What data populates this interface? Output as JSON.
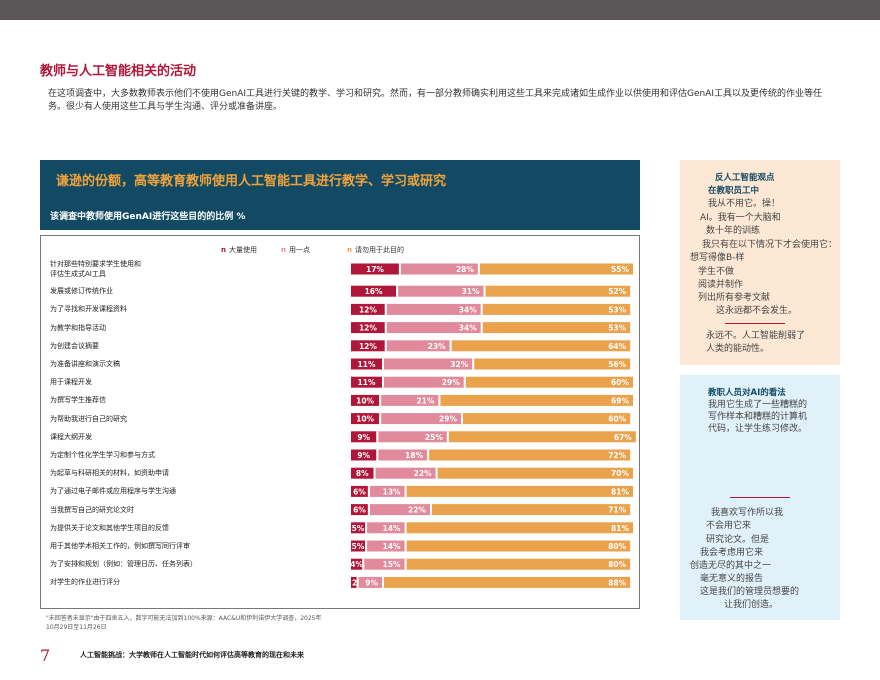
{
  "heading": "教师与人工智能相关的活动",
  "intro": "在这项调查中，大多数教师表示他们不使用GenAI工具进行关键的教学、学习和研究。然而，有一部分教师确实利用这些工具来完成诸如生成作业以供使用和评估GenAI工具以及更传统的作业等任务。很少有人使用这些工具与学生沟通、评分或准备讲座。",
  "banner": {
    "title": "谦逊的份额，高等教育教师使用人工智能工具进行教学、学习或研究",
    "subtitle": "该调查中教师使用GenAI进行这些目的的比例 %"
  },
  "colors": {
    "heavy": "#b0163a",
    "little": "#e08a9b",
    "never": "#eba24c",
    "accent": "#b0163a",
    "banner": "#134a63"
  },
  "chart_data": {
    "type": "bar",
    "stacked": true,
    "orientation": "horizontal",
    "legend_position": "top",
    "series_names": [
      "大量使用",
      "用一点",
      "请勿用于此目的"
    ],
    "categories": [
      "针对那些特别要求学生使用和\n评估生成式AI工具",
      "发展或修订传统作业",
      "为了寻找和开发课程资料",
      "为教学和指导活动",
      "为创建会议摘要",
      "为准备讲座和演示文稿",
      "用于课程开发",
      "为撰写学生推荐信",
      "为帮助我进行自己的研究",
      "课程大纲开发",
      "为定制个性化学生学习和参与方式",
      "为起草与科研相关的材料，如资助申请",
      "为了通过电子邮件或应用程序与学生沟通",
      "当我撰写自己的研究论文时",
      "为提供关于论文和其他学生项目的反馈",
      "用于其他学术相关工作的，例如撰写同行评审",
      "为了安排和规划（例如：管理日历、任务列表）",
      "对学生的作业进行评分"
    ],
    "heavy": [
      17,
      16,
      12,
      12,
      12,
      11,
      11,
      10,
      10,
      9,
      9,
      8,
      6,
      6,
      5,
      5,
      4,
      2
    ],
    "little": [
      28,
      31,
      34,
      34,
      23,
      32,
      29,
      21,
      29,
      25,
      18,
      22,
      13,
      22,
      14,
      14,
      15,
      9
    ],
    "never": [
      55,
      52,
      53,
      53,
      64,
      56,
      60,
      69,
      60,
      67,
      72,
      70,
      81,
      71,
      81,
      80,
      80,
      88
    ],
    "value_suffix": "%"
  },
  "footnote": "\"未回答者未显示\"由于四舍五入，数字可能无法加到100%来源：AAC&U和伊利诺伊大学调查，2025年10月29日至11月26日",
  "page_number": "7",
  "footer": "人工智能挑战：大学教师在人工智能时代如何评估高等教育的现在和未来",
  "sidebar1": {
    "heading1": "反人工智能观点",
    "heading2": "在教职员工中",
    "lines": [
      "我从不用它。操！",
      "AI。我有一个大脑和",
      "数十年的训练",
      "我只有在以下情况下才会使用它：",
      "想写得像B-样",
      "学生不做",
      "阅读并制作",
      "列出所有参考文献",
      "这永远都不会发生。",
      "永远不。人工智能削弱了",
      "人类的能动性。"
    ]
  },
  "sidebar2": {
    "heading": "教职人员对AI的看法",
    "lines": [
      "我用它生成了一些糟糕的",
      "写作样本和糟糕的计算机",
      "代码，让学生练习修改。",
      "我喜欢写作所以我",
      "不会用它来",
      "研究论文。但是",
      "我会考虑用它来",
      "创造无尽的其中之一",
      "毫无意义的报告",
      "这是我们的管理员想要的",
      "让我们创造。"
    ]
  }
}
